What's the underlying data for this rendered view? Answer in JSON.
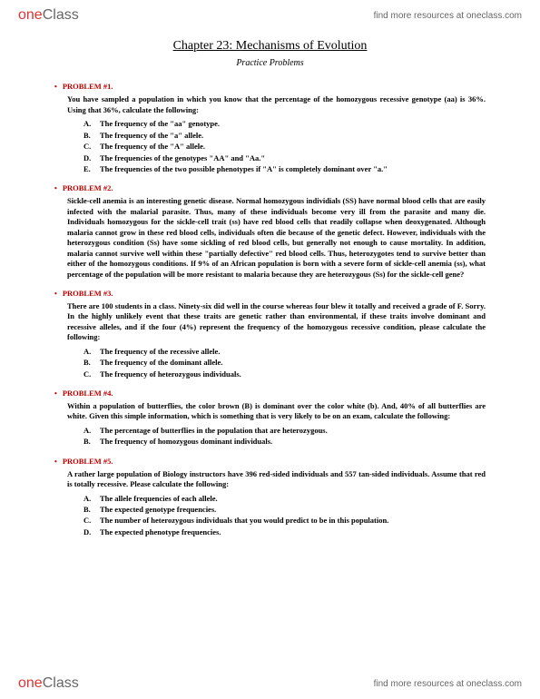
{
  "brand": {
    "part1": "one",
    "part2": "Class"
  },
  "header_link": "find more resources at oneclass.com",
  "chapter_title": "Chapter 23: Mechanisms of Evolution",
  "subtitle": "Practice Problems",
  "problems": [
    {
      "heading": "PROBLEM #1.",
      "body": "You have sampled a population in which you know that the percentage of the homozygous recessive genotype (aa) is 36%. Using that 36%, calculate the following:",
      "items": [
        "The frequency of the \"aa\" genotype.",
        "The frequency of the \"a\" allele.",
        "The frequency of the \"A\" allele.",
        "The frequencies of the genotypes \"AA\" and \"Aa.\"",
        "The frequencies of the two possible phenotypes if \"A\" is completely dominant over \"a.\""
      ]
    },
    {
      "heading": "PROBLEM #2.",
      "body": "Sickle-cell anemia is an interesting genetic disease. Normal homozygous individials (SS) have normal blood cells that are easily infected with the malarial parasite. Thus, many of these individuals become very ill from the parasite and many die. Individuals homozygous for the sickle-cell trait (ss) have red blood cells that readily collapse when deoxygenated. Although malaria cannot grow in these red blood cells, individuals often die because of the genetic defect. However, individuals with the heterozygous condition (Ss) have some sickling of red blood cells, but generally not enough to cause mortality. In addition, malaria cannot survive well within these \"partially defective\" red blood cells. Thus, heterozygotes tend to survive better than either of the homozygous conditions. If 9% of an African population is born with a severe form of sickle-cell anemia (ss), what percentage of the population will be more resistant to malaria because they are heterozygous (Ss) for the sickle-cell gene?",
      "items": []
    },
    {
      "heading": "PROBLEM #3.",
      "body": "There are 100 students in a class. Ninety-six did well in the course whereas four blew it totally and received a grade of F. Sorry. In the highly unlikely event that these traits are genetic rather than environmental, if these traits involve dominant and recessive alleles, and if the four (4%) represent the frequency of the homozygous recessive condition, please calculate the following:",
      "items": [
        "The frequency of the recessive allele.",
        "The frequency of the dominant allele.",
        "The frequency of heterozygous individuals."
      ]
    },
    {
      "heading": "PROBLEM #4.",
      "body": "Within a population of butterflies, the color brown (B) is dominant over the color white (b). And, 40% of all butterflies are white. Given this simple information, which is something that is very likely to be on an exam, calculate the following:",
      "items": [
        "The percentage of butterflies in the population that are heterozygous.",
        "The frequency of homozygous dominant individuals."
      ]
    },
    {
      "heading": "PROBLEM #5.",
      "body": "A rather large population of Biology instructors have 396 red-sided individuals and 557 tan-sided individuals. Assume that red is totally recessive. Please calculate the following:",
      "items": [
        "The allele frequencies of each allele.",
        "The expected genotype frequencies.",
        "The number of heterozygous individuals that you would predict to be in this population.",
        "The expected phenotype frequencies."
      ]
    }
  ],
  "letters": [
    "A.",
    "B.",
    "C.",
    "D.",
    "E."
  ]
}
